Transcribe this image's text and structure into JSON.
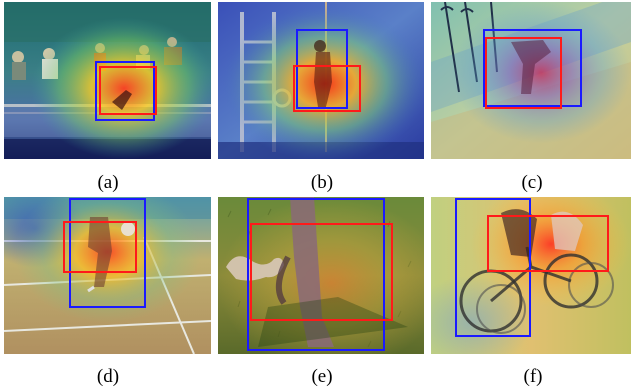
{
  "figure": {
    "panels": [
      {
        "id": "a",
        "caption": "(a)",
        "content": "gymnastics parallel bars video frame with attention heatmap",
        "boxes": [
          {
            "color": "#1a1aff",
            "label": "blue"
          },
          {
            "color": "#ff1a1a",
            "label": "red"
          }
        ]
      },
      {
        "id": "b",
        "caption": "(b)",
        "content": "rope climbing video frame with attention heatmap",
        "boxes": [
          {
            "color": "#1a1aff",
            "label": "blue"
          },
          {
            "color": "#ff1a1a",
            "label": "red"
          }
        ]
      },
      {
        "id": "c",
        "caption": "(c)",
        "content": "skateboarding video frame with attention heatmap",
        "boxes": [
          {
            "color": "#1a1aff",
            "label": "blue"
          },
          {
            "color": "#ff1a1a",
            "label": "red"
          }
        ]
      },
      {
        "id": "d",
        "caption": "(d)",
        "content": "soccer juggling on court video frame with attention heatmap",
        "boxes": [
          {
            "color": "#1a1aff",
            "label": "blue"
          },
          {
            "color": "#ff1a1a",
            "label": "red"
          }
        ]
      },
      {
        "id": "e",
        "caption": "(e)",
        "content": "walking with dog on grass video frame with attention heatmap",
        "boxes": [
          {
            "color": "#1a1aff",
            "label": "blue"
          },
          {
            "color": "#ff1a1a",
            "label": "red"
          }
        ]
      },
      {
        "id": "f",
        "caption": "(f)",
        "content": "cycling video frame with attention heatmap",
        "boxes": [
          {
            "color": "#1a1aff",
            "label": "blue"
          },
          {
            "color": "#ff1a1a",
            "label": "red"
          }
        ]
      }
    ]
  }
}
